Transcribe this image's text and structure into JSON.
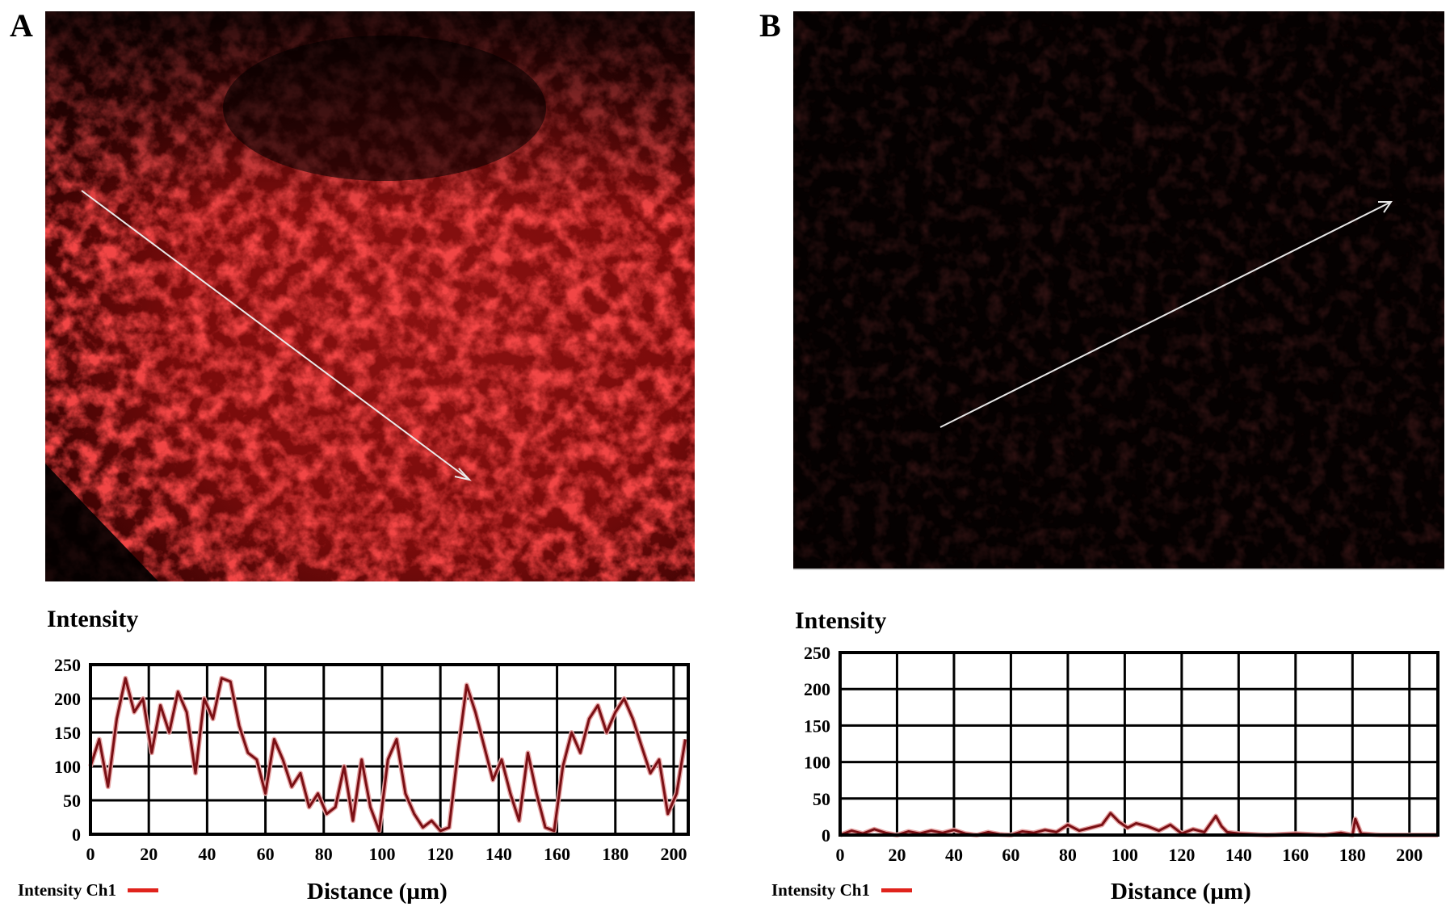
{
  "panels": {
    "a": {
      "letter": "A",
      "intensity_title": "Intensity",
      "legend": "Intensity Ch1",
      "xlabel": "Distance (µm)"
    },
    "b": {
      "letter": "B",
      "intensity_title": "Intensity",
      "legend": "Intensity Ch1",
      "xlabel": "Distance (µm)"
    }
  },
  "colors": {
    "signal": "#e11a1a",
    "trace": "#7a0f14",
    "trace_light": "#e7a6a6",
    "legend_swatch": "#e0231c"
  },
  "chart_data": [
    {
      "type": "line",
      "panel": "A",
      "title": "Intensity",
      "xlabel": "Distance (µm)",
      "ylabel": "",
      "xlim": [
        0,
        205
      ],
      "ylim": [
        0,
        250
      ],
      "xticks": [
        0,
        20,
        40,
        60,
        80,
        100,
        120,
        140,
        160,
        180,
        200
      ],
      "yticks": [
        0,
        50,
        100,
        150,
        200,
        250
      ],
      "grid": true,
      "legend_position": "bottom-left",
      "series": [
        {
          "name": "Intensity Ch1",
          "x": [
            0,
            3,
            6,
            9,
            12,
            15,
            18,
            21,
            24,
            27,
            30,
            33,
            36,
            39,
            42,
            45,
            48,
            51,
            54,
            57,
            60,
            63,
            66,
            69,
            72,
            75,
            78,
            81,
            84,
            87,
            90,
            93,
            96,
            99,
            102,
            105,
            108,
            111,
            114,
            117,
            120,
            123,
            126,
            129,
            132,
            135,
            138,
            141,
            144,
            147,
            150,
            153,
            156,
            159,
            162,
            165,
            168,
            171,
            174,
            177,
            180,
            183,
            186,
            189,
            192,
            195,
            198,
            201,
            204
          ],
          "y": [
            100,
            140,
            70,
            170,
            230,
            180,
            200,
            120,
            190,
            150,
            210,
            180,
            90,
            200,
            170,
            230,
            225,
            160,
            120,
            110,
            60,
            140,
            110,
            70,
            90,
            40,
            60,
            30,
            40,
            100,
            20,
            110,
            40,
            5,
            110,
            140,
            60,
            30,
            10,
            20,
            5,
            10,
            120,
            220,
            180,
            130,
            80,
            110,
            60,
            20,
            120,
            60,
            10,
            5,
            100,
            150,
            120,
            170,
            190,
            150,
            180,
            200,
            170,
            130,
            90,
            110,
            30,
            60,
            140
          ]
        }
      ]
    },
    {
      "type": "line",
      "panel": "B",
      "title": "Intensity",
      "xlabel": "Distance (µm)",
      "ylabel": "",
      "xlim": [
        0,
        210
      ],
      "ylim": [
        0,
        250
      ],
      "xticks": [
        0,
        20,
        40,
        60,
        80,
        100,
        120,
        140,
        160,
        180,
        200
      ],
      "yticks": [
        0,
        50,
        100,
        150,
        200,
        250
      ],
      "grid": true,
      "legend_position": "bottom-left",
      "series": [
        {
          "name": "Intensity Ch1",
          "x": [
            0,
            4,
            8,
            12,
            16,
            20,
            24,
            28,
            32,
            36,
            40,
            44,
            48,
            52,
            56,
            60,
            64,
            68,
            72,
            76,
            80,
            84,
            88,
            92,
            95,
            98,
            101,
            104,
            108,
            112,
            116,
            120,
            124,
            128,
            132,
            134,
            136,
            140,
            150,
            160,
            170,
            176,
            180,
            181,
            183,
            190,
            200,
            210
          ],
          "y": [
            0,
            6,
            2,
            8,
            3,
            0,
            5,
            2,
            6,
            3,
            7,
            2,
            0,
            4,
            1,
            0,
            5,
            3,
            7,
            4,
            14,
            6,
            10,
            14,
            30,
            18,
            10,
            16,
            12,
            6,
            14,
            2,
            8,
            4,
            26,
            12,
            4,
            2,
            0,
            2,
            0,
            3,
            0,
            22,
            2,
            0,
            0,
            0
          ]
        }
      ]
    }
  ]
}
